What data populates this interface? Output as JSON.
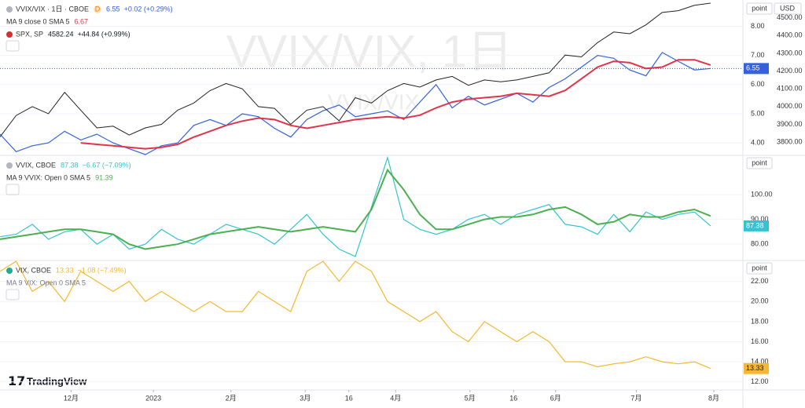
{
  "ui": {
    "scale_label": "point",
    "currency": "USD",
    "logo": "TradingView"
  },
  "watermark": [
    "VVIX/VIX, 1日",
    "VVIX/VIX"
  ],
  "chart_data": [
    {
      "type": "line",
      "badge": "D",
      "x": [
        0,
        1,
        2,
        3,
        4,
        5,
        6,
        7,
        8,
        9,
        10,
        11,
        12,
        13,
        14,
        15,
        16,
        17,
        18,
        19,
        20,
        21,
        22,
        23,
        24,
        25,
        26,
        27,
        28,
        29,
        30,
        31,
        32,
        33,
        34,
        35,
        36,
        37,
        38,
        39,
        40,
        41,
        42,
        43,
        44
      ],
      "ylim": [
        3.6,
        8.9
      ],
      "yticks": [
        {
          "value": 4,
          "label": "4.00"
        },
        {
          "value": 5,
          "label": "5.00"
        },
        {
          "value": 6,
          "label": "6.00"
        },
        {
          "value": 7,
          "label": "7.00"
        },
        {
          "value": 8,
          "label": "8.00"
        }
      ],
      "y2lim": [
        3730,
        4600
      ],
      "y2ticks": [
        {
          "value": 3800,
          "label": "3800.00"
        },
        {
          "value": 3900,
          "label": "3900.00"
        },
        {
          "value": 4000,
          "label": "4000.00"
        },
        {
          "value": 4100,
          "label": "4100.00"
        },
        {
          "value": 4200,
          "label": "4200.00"
        },
        {
          "value": 4300,
          "label": "4300.00"
        },
        {
          "value": 4400,
          "label": "4400.00"
        },
        {
          "value": 4500,
          "label": "4500.00"
        }
      ],
      "series": [
        {
          "name": "VVIX/VIX · 1日 · CBOE",
          "color": "#3361e0",
          "change": "+0.02 (+0.29%)",
          "values": [
            4.3,
            3.7,
            3.9,
            4.0,
            4.4,
            4.1,
            4.3,
            4.0,
            3.8,
            3.6,
            3.9,
            4.0,
            4.6,
            4.8,
            4.6,
            5.0,
            4.9,
            4.5,
            4.2,
            4.8,
            5.1,
            5.3,
            4.9,
            5.0,
            5.1,
            4.8,
            5.4,
            6.0,
            5.2,
            5.6,
            5.3,
            5.5,
            5.7,
            5.4,
            5.9,
            6.2,
            6.6,
            7.0,
            6.9,
            6.5,
            6.3,
            7.1,
            6.8,
            6.5,
            6.55
          ]
        },
        {
          "name": "MA 9 close 0 SMA 5",
          "color": "#e0344a",
          "values": [
            null,
            null,
            null,
            null,
            null,
            4.0,
            3.95,
            3.9,
            3.85,
            3.8,
            3.85,
            3.95,
            4.2,
            4.4,
            4.6,
            4.75,
            4.85,
            4.8,
            4.6,
            4.5,
            4.6,
            4.7,
            4.8,
            4.85,
            4.9,
            4.85,
            4.95,
            5.2,
            5.4,
            5.5,
            5.55,
            5.6,
            5.7,
            5.65,
            5.6,
            5.8,
            6.2,
            6.6,
            6.8,
            6.75,
            6.55,
            6.6,
            6.85,
            6.85,
            6.67
          ]
        },
        {
          "name": "SPX, SP",
          "color": "#222222",
          "axis": "y2",
          "change": "+44.84 (+0.99%)",
          "values": [
            3830,
            3950,
            4000,
            3960,
            4080,
            3980,
            3880,
            3890,
            3840,
            3880,
            3900,
            3980,
            4020,
            4090,
            4130,
            4100,
            4000,
            3990,
            3900,
            3980,
            4000,
            3920,
            4050,
            4020,
            4090,
            4130,
            4110,
            4150,
            4170,
            4120,
            4150,
            4140,
            4150,
            4170,
            4190,
            4290,
            4280,
            4360,
            4420,
            4410,
            4460,
            4530,
            4540,
            4570,
            4582.24
          ]
        }
      ]
    },
    {
      "type": "line",
      "x": [
        0,
        1,
        2,
        3,
        4,
        5,
        6,
        7,
        8,
        9,
        10,
        11,
        12,
        13,
        14,
        15,
        16,
        17,
        18,
        19,
        20,
        21,
        22,
        23,
        24,
        25,
        26,
        27,
        28,
        29,
        30,
        31,
        32,
        33,
        34,
        35,
        36,
        37,
        38,
        39,
        40,
        41,
        42,
        43,
        44
      ],
      "ylim": [
        73.7,
        115.6
      ],
      "yticks": [
        {
          "value": 80,
          "label": "80.00"
        },
        {
          "value": 90,
          "label": "90.00"
        },
        {
          "value": 100,
          "label": "100.00"
        }
      ],
      "series": [
        {
          "name": "VVIX, CBOE",
          "color": "#33c4d1",
          "change": "−6.67 (−7.09%)",
          "values": [
            83,
            84,
            88,
            82,
            85,
            86,
            80,
            84,
            78,
            80,
            86,
            82,
            80,
            84,
            88,
            86,
            84,
            80,
            86,
            92,
            84,
            78,
            75,
            95,
            115,
            90,
            86,
            84,
            86,
            90,
            92,
            88,
            92,
            94,
            96,
            88,
            87,
            84,
            92,
            85,
            93,
            90,
            92,
            93,
            87.38
          ]
        },
        {
          "name": "MA 9 VVIX: Open 0 SMA 5",
          "color": "#4caf50",
          "values": [
            82,
            83,
            84,
            85,
            86,
            86,
            85,
            84,
            80,
            78,
            79,
            80,
            82,
            84,
            85,
            86,
            87,
            86,
            85,
            86,
            87,
            86,
            85,
            94,
            110,
            102,
            92,
            86,
            86,
            88,
            90,
            91,
            91,
            92,
            94,
            95,
            92,
            88,
            89,
            92,
            91,
            91,
            93,
            94,
            91.39
          ]
        }
      ]
    },
    {
      "type": "line",
      "x": [
        0,
        1,
        2,
        3,
        4,
        5,
        6,
        7,
        8,
        9,
        10,
        11,
        12,
        13,
        14,
        15,
        16,
        17,
        18,
        19,
        20,
        21,
        22,
        23,
        24,
        25,
        26,
        27,
        28,
        29,
        30,
        31,
        32,
        33,
        34,
        35,
        36,
        37,
        38,
        39,
        40,
        41,
        42,
        43,
        44
      ],
      "xlim": [
        0,
        46
      ],
      "xticks": [
        {
          "value": 4.4,
          "label": "12月"
        },
        {
          "value": 9.5,
          "label": "2023"
        },
        {
          "value": 14.3,
          "label": "2月"
        },
        {
          "value": 18.9,
          "label": "3月"
        },
        {
          "value": 21.6,
          "label": "16"
        },
        {
          "value": 24.5,
          "label": "4月"
        },
        {
          "value": 29.1,
          "label": "5月"
        },
        {
          "value": 31.8,
          "label": "16"
        },
        {
          "value": 34.4,
          "label": "6月"
        },
        {
          "value": 39.4,
          "label": "7月"
        },
        {
          "value": 44.2,
          "label": "8月"
        }
      ],
      "ylim": [
        11.2,
        24.0
      ],
      "yticks": [
        {
          "value": 12,
          "label": "12.00"
        },
        {
          "value": 14,
          "label": "14.00"
        },
        {
          "value": 16,
          "label": "16.00"
        },
        {
          "value": 18,
          "label": "18.00"
        },
        {
          "value": 20,
          "label": "20.00"
        },
        {
          "value": 22,
          "label": "22.00"
        }
      ],
      "indicators": [
        "MA 9 VIX: Open 0 SMA 5"
      ],
      "series": [
        {
          "name": "VIX, CBOE",
          "color": "#f5b82e",
          "change": "−1.08 (−7.49%)",
          "values": [
            23,
            24,
            21,
            22,
            20,
            23,
            22,
            21,
            22,
            20,
            21,
            20,
            19,
            20,
            19,
            19,
            21,
            20,
            19,
            23,
            24,
            22,
            24,
            23,
            20,
            19,
            18,
            19,
            17,
            16,
            18,
            17,
            16,
            17,
            16,
            14,
            14,
            13.5,
            13.8,
            14,
            14.5,
            14,
            13.8,
            14,
            13.33
          ]
        }
      ]
    }
  ]
}
